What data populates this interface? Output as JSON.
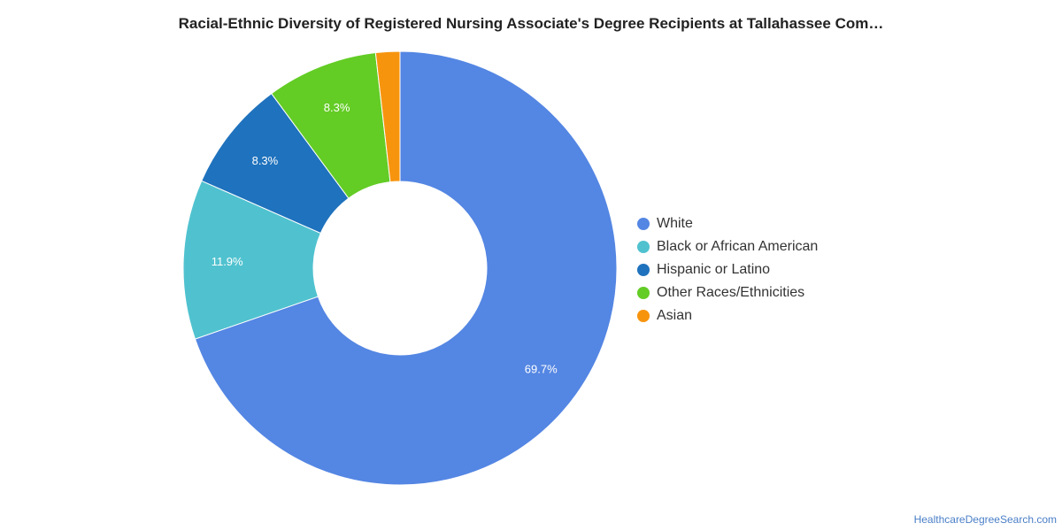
{
  "chart_data": {
    "type": "pie",
    "title": "Racial-Ethnic Diversity of Registered Nursing Associate's Degree Recipients at Tallahassee Com…",
    "donut": true,
    "legend_position": "right",
    "slices": [
      {
        "label": "White",
        "value": 69.7,
        "value_label": "69.7%",
        "color": "#5486e3"
      },
      {
        "label": "Black or African American",
        "value": 11.9,
        "value_label": "11.9%",
        "color": "#50c2cf"
      },
      {
        "label": "Hispanic or Latino",
        "value": 8.3,
        "value_label": "8.3%",
        "color": "#1f72bd"
      },
      {
        "label": "Other Races/Ethnicities",
        "value": 8.3,
        "value_label": "8.3%",
        "color": "#63cc25"
      },
      {
        "label": "Asian",
        "value": 1.8,
        "value_label": "",
        "color": "#f7940e"
      }
    ]
  },
  "footer": {
    "source": "HealthcareDegreeSearch.com"
  }
}
